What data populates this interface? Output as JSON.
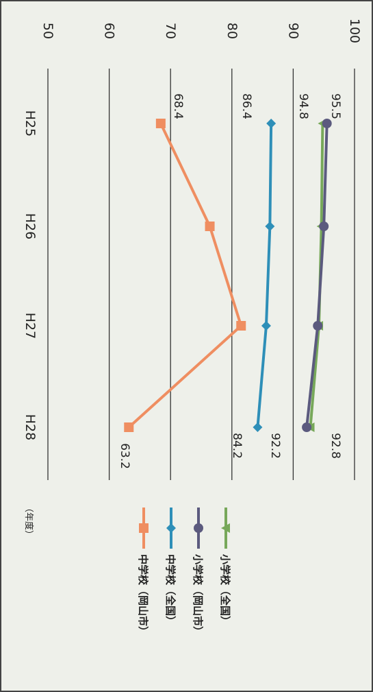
{
  "chart_data": {
    "type": "line",
    "categories": [
      "H25",
      "H26",
      "H27",
      "H28"
    ],
    "ylim": [
      50,
      100
    ],
    "yticks": [
      50,
      60,
      70,
      80,
      90,
      100
    ],
    "xlabel": "（年度）",
    "ylabel": "",
    "grid": true,
    "orientation": "rotated 90° clockwise",
    "legend_position": "bottom-right",
    "series": [
      {
        "name": "小学校（全国）",
        "values": [
          94.8,
          94.6,
          94.2,
          92.8
        ],
        "color": "#77a85a",
        "marker": "triangle",
        "label_indices": [
          0,
          3
        ],
        "labels": [
          "94.8",
          "92.8"
        ]
      },
      {
        "name": "小学校（岡山市）",
        "values": [
          95.5,
          95.0,
          94.0,
          92.2
        ],
        "color": "#5b5a7e",
        "marker": "circle",
        "label_indices": [
          0,
          3
        ],
        "labels": [
          "95.5",
          "92.2"
        ]
      },
      {
        "name": "中学校（全国）",
        "values": [
          86.4,
          86.2,
          85.6,
          84.2
        ],
        "color": "#2e8fb8",
        "marker": "diamond",
        "label_indices": [
          0,
          3
        ],
        "labels": [
          "86.4",
          "84.2"
        ]
      },
      {
        "name": "中学校（岡山市）",
        "values": [
          68.4,
          76.4,
          81.5,
          63.2
        ],
        "color": "#ef8e61",
        "marker": "square",
        "label_indices": [
          0,
          3
        ],
        "labels": [
          "68.4",
          "63.2"
        ]
      }
    ]
  }
}
